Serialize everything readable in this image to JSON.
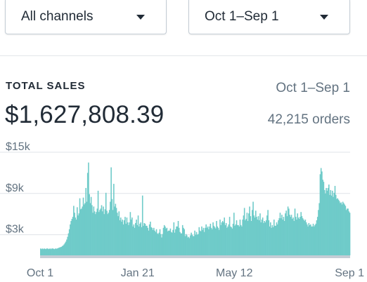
{
  "filters": {
    "channel": "All channels",
    "date_range": "Oct 1–Sep 1"
  },
  "summary": {
    "title": "TOTAL SALES",
    "range": "Oct 1–Sep 1",
    "total": "$1,627,808.39",
    "orders": "42,215 orders"
  },
  "colors": {
    "area": "#6fcbc9",
    "baseline": "#c4cdd5",
    "grid": "#dfe3e8"
  },
  "chart_data": {
    "type": "bar",
    "title": "",
    "xlabel": "",
    "ylabel": "",
    "ylim": [
      0,
      15000
    ],
    "grid": true,
    "y_ticks": [
      {
        "value": 15000,
        "label": "$15k"
      },
      {
        "value": 9000,
        "label": "$9k"
      },
      {
        "value": 3000,
        "label": "$3k"
      }
    ],
    "x_ticks": [
      {
        "index": 0,
        "label": "Oct 1"
      },
      {
        "index": 112,
        "label": "Jan 21"
      },
      {
        "index": 223,
        "label": "May 12"
      },
      {
        "index": 335,
        "label": "Sep 1"
      }
    ],
    "series": [
      {
        "values": [
          1000,
          900,
          1000,
          900,
          1000,
          950,
          900,
          1000,
          1000,
          900,
          950,
          1000,
          900,
          1000,
          1000,
          950,
          900,
          1000,
          950,
          1000,
          1050,
          1100,
          1150,
          1200,
          1250,
          1350,
          1450,
          1600,
          1800,
          2000,
          2300,
          2700,
          3200,
          3800,
          4500,
          5000,
          5300,
          5600,
          7200,
          6200,
          5500,
          5200,
          7000,
          5800,
          6100,
          8300,
          6700,
          6800,
          7100,
          8400,
          7400,
          7600,
          9800,
          7800,
          12000,
          13500,
          8900,
          7600,
          8500,
          7300,
          6200,
          7100,
          6400,
          6000,
          6300,
          6800,
          9400,
          6300,
          6600,
          6800,
          7300,
          6400,
          7100,
          6000,
          6700,
          9100,
          6500,
          6000,
          6200,
          6600,
          7800,
          12800,
          8200,
          6600,
          10400,
          7100,
          7500,
          6900,
          6200,
          5700,
          6400,
          5100,
          5500,
          4900,
          5200,
          4500,
          5100,
          5600,
          4600,
          5500,
          4800,
          4400,
          4800,
          6300,
          5200,
          5500,
          4200,
          4500,
          4000,
          4700,
          5200,
          4400,
          5800,
          4200,
          4600,
          4800,
          4100,
          8700,
          4300,
          4700,
          4600,
          4300,
          4300,
          4000,
          3600,
          4500,
          4900,
          4100,
          4000,
          3700,
          4000,
          3600,
          3400,
          3800,
          3200,
          3100,
          3300,
          3800,
          3100,
          2600,
          3100,
          4000,
          4400,
          4200,
          3900,
          4000,
          3500,
          3600,
          3600,
          3900,
          3400,
          3300,
          3700,
          4800,
          3300,
          3800,
          4200,
          4200,
          5000,
          4000,
          3400,
          3200,
          3200,
          4400,
          4000,
          3800,
          2800,
          3100,
          2900,
          2600,
          2700,
          2500,
          2900,
          3300,
          3000,
          2800,
          2800,
          3600,
          3000,
          3400,
          3000,
          3100,
          4100,
          3600,
          3500,
          4200,
          3700,
          4000,
          3400,
          4000,
          4500,
          4000,
          4200,
          3800,
          4200,
          4600,
          4000,
          3800,
          4800,
          4300,
          4100,
          3900,
          5000,
          4200,
          4000,
          3700,
          5200,
          4400,
          4800,
          5000,
          4800,
          5500,
          4400,
          4700,
          4000,
          4200,
          4500,
          5600,
          4200,
          4100,
          3900,
          4600,
          6200,
          4300,
          4500,
          5100,
          4400,
          4400,
          4200,
          5200,
          4400,
          4200,
          5200,
          5800,
          6900,
          5100,
          5300,
          6200,
          5000,
          6100,
          7100,
          5700,
          5000,
          6600,
          7800,
          5800,
          5500,
          6500,
          5600,
          5200,
          5700,
          5100,
          6100,
          4800,
          5200,
          5500,
          4700,
          5000,
          4800,
          5100,
          5800,
          6600,
          5100,
          4200,
          4800,
          4000,
          4400,
          4100,
          5200,
          4300,
          4300,
          4800,
          4500,
          5100,
          5400,
          6200,
          5400,
          5900,
          5200,
          5600,
          5000,
          6100,
          6500,
          5700,
          7100,
          6800,
          5900,
          5600,
          5900,
          5300,
          5500,
          5000,
          6800,
          5600,
          5200,
          6100,
          5500,
          5300,
          5600,
          6300,
          5700,
          5400,
          5200,
          5000,
          5200,
          4800,
          4500,
          4200,
          4700,
          4400,
          4500,
          4200,
          4200,
          4600,
          4200,
          4400,
          4600,
          5100,
          5600,
          6600,
          7600,
          11800,
          12700,
          12200,
          11000,
          10700,
          9500,
          9000,
          9800,
          9400,
          9800,
          10300,
          8800,
          9500,
          8700,
          9400,
          8500,
          9100,
          10100,
          8800,
          8200,
          8300,
          8100,
          7900,
          7600,
          7700,
          7400,
          7800,
          7600,
          7400,
          7200,
          6600,
          6800,
          6800,
          6400,
          6200
        ]
      }
    ]
  }
}
